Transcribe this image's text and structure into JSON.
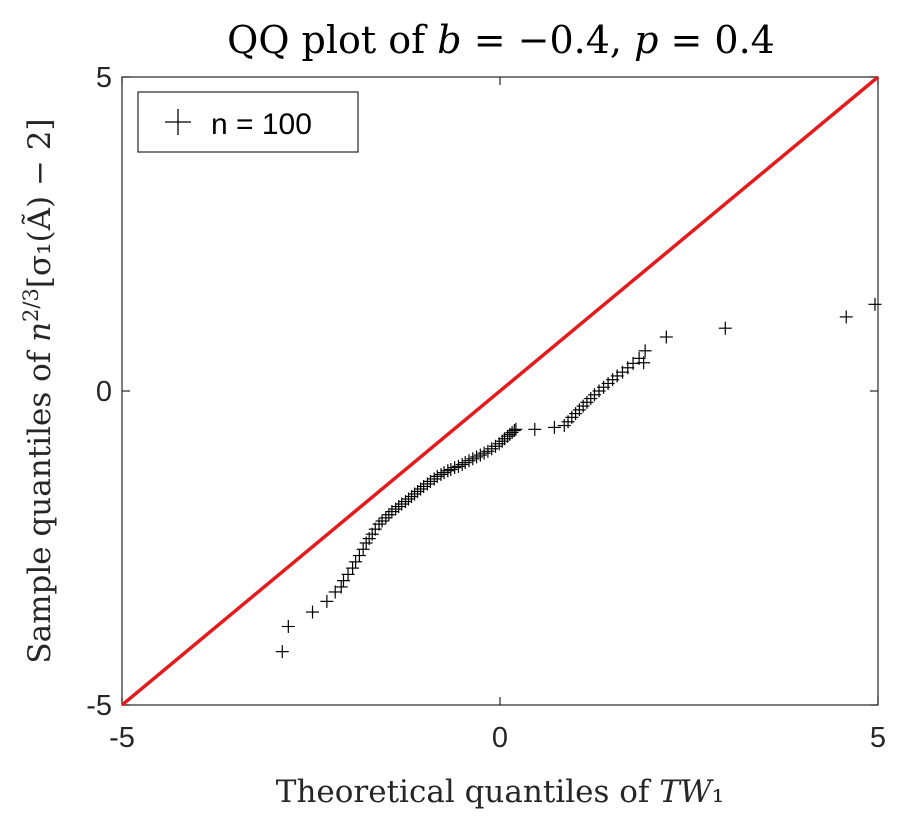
{
  "chart_data": {
    "type": "scatter",
    "title": "QQ plot of b = −0.4, p = 0.4",
    "xlabel": "Theoretical quantiles of TW₁",
    "ylabel": "Sample quantiles of n^{2/3}[σ₁(Ã) − 2]",
    "xlim": [
      -5,
      5
    ],
    "ylim": [
      -5,
      5
    ],
    "xticks": [
      -5,
      0,
      5
    ],
    "yticks": [
      -5,
      0,
      5
    ],
    "xtick_labels": [
      "-5",
      "0",
      "5"
    ],
    "ytick_labels": [
      "-5",
      "0",
      "5"
    ],
    "grid": false,
    "legend": {
      "placement": "top-left",
      "entries": [
        "n = 100"
      ]
    },
    "reference_line": {
      "x": [
        -5,
        5
      ],
      "y": [
        -5,
        5
      ],
      "color": "#e41a1c"
    },
    "series": [
      {
        "name": "n = 100",
        "marker": "+",
        "color": "#000000",
        "x": [
          -2.88,
          -2.8,
          -2.48,
          -2.29,
          -2.18,
          -2.1,
          -2.07,
          -2.01,
          -1.95,
          -1.91,
          -1.86,
          -1.81,
          -1.77,
          -1.73,
          -1.69,
          -1.65,
          -1.6,
          -1.56,
          -1.51,
          -1.47,
          -1.43,
          -1.38,
          -1.34,
          -1.3,
          -1.25,
          -1.21,
          -1.17,
          -1.13,
          -1.09,
          -1.05,
          -1.01,
          -0.96,
          -0.92,
          -0.87,
          -0.83,
          -0.78,
          -0.74,
          -0.69,
          -0.65,
          -0.6,
          -0.55,
          -0.5,
          -0.46,
          -0.41,
          -0.36,
          -0.31,
          -0.26,
          -0.21,
          -0.16,
          -0.11,
          -0.06,
          -0.01,
          0.03,
          0.06,
          0.1,
          0.13,
          0.16,
          0.19,
          0.21,
          0.46,
          0.72,
          0.85,
          0.9,
          0.95,
          1.0,
          1.05,
          1.1,
          1.15,
          1.2,
          1.25,
          1.31,
          1.37,
          1.43,
          1.49,
          1.55,
          1.62,
          1.69,
          1.76,
          1.84,
          1.9,
          1.92,
          2.2,
          2.98,
          4.58,
          4.96
        ],
        "y": [
          -4.15,
          -3.75,
          -3.52,
          -3.35,
          -3.2,
          -3.12,
          -3.02,
          -2.92,
          -2.82,
          -2.72,
          -2.62,
          -2.52,
          -2.42,
          -2.35,
          -2.28,
          -2.2,
          -2.12,
          -2.07,
          -2.02,
          -1.97,
          -1.92,
          -1.88,
          -1.84,
          -1.8,
          -1.76,
          -1.72,
          -1.68,
          -1.64,
          -1.6,
          -1.56,
          -1.52,
          -1.48,
          -1.44,
          -1.4,
          -1.36,
          -1.33,
          -1.3,
          -1.27,
          -1.25,
          -1.22,
          -1.2,
          -1.17,
          -1.14,
          -1.11,
          -1.08,
          -1.05,
          -1.02,
          -0.99,
          -0.96,
          -0.92,
          -0.88,
          -0.84,
          -0.8,
          -0.76,
          -0.72,
          -0.69,
          -0.66,
          -0.63,
          -0.61,
          -0.61,
          -0.58,
          -0.55,
          -0.49,
          -0.42,
          -0.36,
          -0.3,
          -0.24,
          -0.18,
          -0.12,
          -0.06,
          0.0,
          0.06,
          0.12,
          0.18,
          0.24,
          0.3,
          0.37,
          0.44,
          0.52,
          0.45,
          0.64,
          0.86,
          1.0,
          1.18,
          1.38
        ]
      }
    ]
  }
}
